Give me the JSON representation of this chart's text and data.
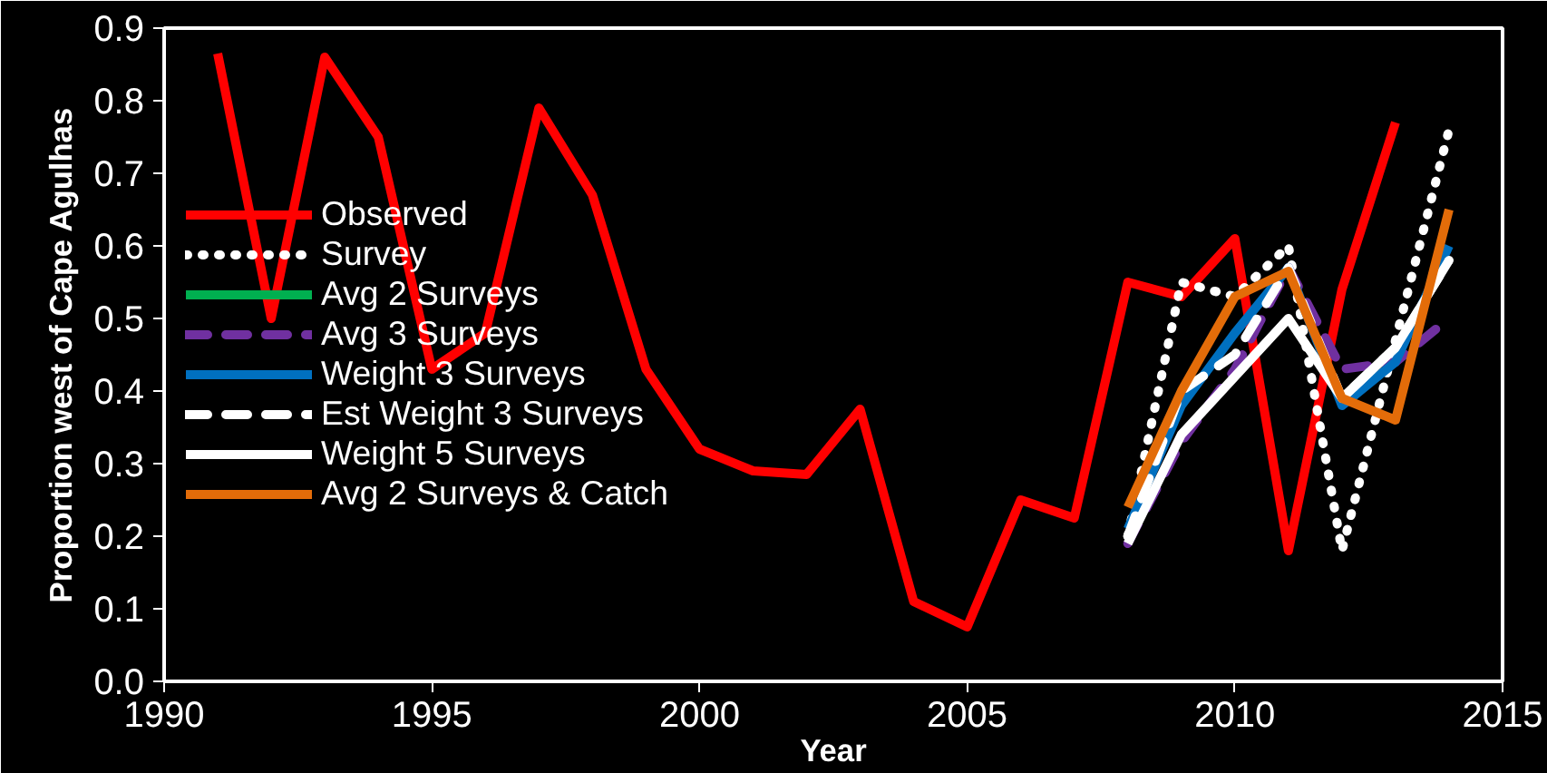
{
  "chart_data": {
    "type": "line",
    "xlabel": "Year",
    "ylabel": "Proportion west of Cape Agulhas",
    "xlim": [
      1990,
      2015
    ],
    "xticks": [
      1990,
      1995,
      2000,
      2005,
      2010,
      2015
    ],
    "ylim": [
      0,
      0.9
    ],
    "yticks": [
      {
        "value": 0,
        "label": "0.0"
      },
      0.1,
      0.2,
      0.3,
      0.4,
      0.5,
      0.6,
      0.7,
      0.8,
      0.9
    ],
    "grid": false,
    "legend": "left",
    "marker": "none",
    "series": [
      {
        "name": "Observed",
        "color": "#ff0000",
        "line_style": "solid",
        "x": [
          1991,
          1992,
          1993,
          1994,
          1995,
          1996,
          1997,
          1998,
          1999,
          2000,
          2001,
          2002,
          2003,
          2004,
          2005,
          2006,
          2007,
          2008,
          2009,
          2010,
          2011,
          2012,
          2013
        ],
        "values": [
          0.865,
          0.5,
          0.86,
          0.75,
          0.43,
          0.48,
          0.79,
          0.67,
          0.43,
          0.32,
          0.29,
          0.285,
          0.375,
          0.11,
          0.075,
          0.25,
          0.225,
          0.55,
          0.53,
          0.61,
          0.18,
          0.54,
          0.77
        ]
      },
      {
        "name": "Survey",
        "color": "#ffffff",
        "line_style": "dotted",
        "x": [
          2008,
          2009,
          2010,
          2011,
          2012,
          2013,
          2014
        ],
        "values": [
          0.2,
          0.55,
          0.53,
          0.6,
          0.18,
          0.47,
          0.76
        ]
      },
      {
        "name": "Avg 2 Surveys",
        "color": "#00b050",
        "line_style": "solid",
        "values": [
          null,
          null,
          null,
          null,
          null,
          null,
          null
        ]
      },
      {
        "name": "Avg 3 Surveys",
        "color": "#7030a0",
        "line_style": "dashed",
        "x": [
          2008,
          2009,
          2010,
          2011,
          2012,
          2013,
          2014
        ],
        "values": [
          0.19,
          0.33,
          0.43,
          0.57,
          0.43,
          0.44,
          0.5
        ]
      },
      {
        "name": "Weight 3 Surveys",
        "color": "#0070c0",
        "line_style": "solid",
        "x": [
          2008,
          2009,
          2010,
          2011,
          2012,
          2013,
          2014
        ],
        "values": [
          0.21,
          0.38,
          0.48,
          0.57,
          0.38,
          0.44,
          0.6
        ]
      },
      {
        "name": "Est Weight 3 Surveys",
        "color": "#ffffff",
        "line_style": "dashed",
        "x": [
          2008,
          2009,
          2010,
          2011,
          2012,
          2013,
          2014
        ],
        "values": [
          0.2,
          0.4,
          0.45,
          0.57,
          0.39,
          0.46,
          0.58
        ]
      },
      {
        "name": "Weight 5 Surveys",
        "color": "#ffffff",
        "line_style": "solid",
        "x": [
          2008,
          2009,
          2010,
          2011,
          2012,
          2013,
          2014
        ],
        "values": [
          0.19,
          0.34,
          0.42,
          0.5,
          0.39,
          0.46,
          0.58
        ]
      },
      {
        "name": "Avg 2 Surveys & Catch",
        "color": "#e36c09",
        "line_style": "solid",
        "x": [
          2008,
          2009,
          2010,
          2011,
          2012,
          2013,
          2014
        ],
        "values": [
          0.24,
          0.4,
          0.53,
          0.565,
          0.39,
          0.36,
          0.65
        ]
      }
    ]
  }
}
